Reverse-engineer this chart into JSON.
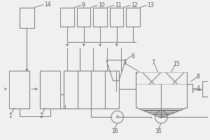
{
  "bg_color": "#f0f0f0",
  "line_color": "#777777",
  "hatch_color": "#999999",
  "label_color": "#555555",
  "fig_width": 3.0,
  "fig_height": 2.0,
  "dpi": 100
}
